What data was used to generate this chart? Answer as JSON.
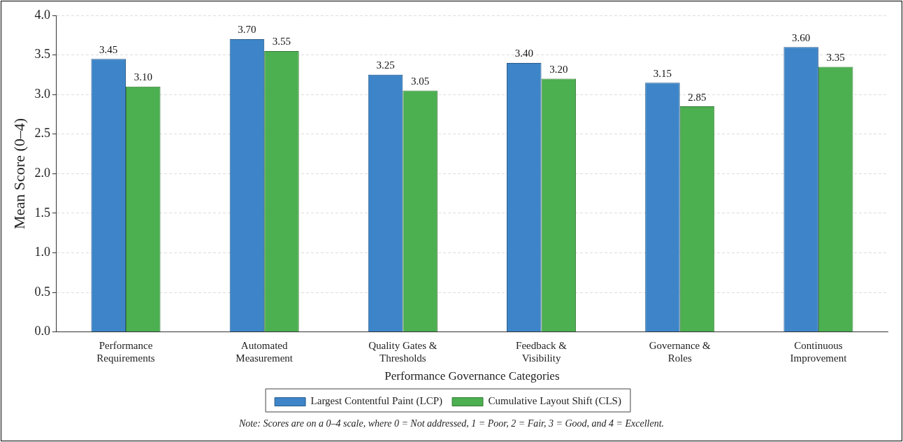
{
  "chart_data": {
    "type": "bar",
    "xlabel": "Performance Governance Categories",
    "ylabel": "Mean Score (0–4)",
    "categories": [
      "Performance Requirements",
      "Automated Measurement",
      "Quality Gates & Thresholds",
      "Feedback & Visibility",
      "Governance & Roles",
      "Continuous Improvement"
    ],
    "series": [
      {
        "name": "Largest Contentful Paint (LCP)",
        "color": "#3d85c8",
        "values": [
          3.45,
          3.7,
          3.25,
          3.4,
          3.15,
          3.6
        ],
        "value_labels": [
          "3.45",
          "3.70",
          "3.25",
          "3.40",
          "3.15",
          "3.60"
        ]
      },
      {
        "name": "Cumulative Layout Shift (CLS)",
        "color": "#4caf50",
        "values": [
          3.1,
          3.55,
          3.05,
          3.2,
          2.85,
          3.35
        ],
        "value_labels": [
          "3.10",
          "3.55",
          "3.05",
          "3.20",
          "2.85",
          "3.35"
        ]
      }
    ],
    "ylim": [
      0,
      4
    ],
    "yticks": [
      {
        "value": 0,
        "label": "0.0"
      },
      {
        "value": 0.5,
        "label": "0.5"
      },
      {
        "value": 1,
        "label": "1.0"
      },
      {
        "value": 1.5,
        "label": "1.5"
      },
      {
        "value": 2,
        "label": "2.0"
      },
      {
        "value": 2.5,
        "label": "2.5"
      },
      {
        "value": 3,
        "label": "3.0"
      },
      {
        "value": 3.5,
        "label": "3.5"
      },
      {
        "value": 4,
        "label": "4.0"
      }
    ],
    "grid": "y",
    "legend": "bottom",
    "annotations": [
      "Note: Scores are on a 0–4 scale, where 0 = Not addressed, 1 = Poor, 2 = Fair, 3 = Good, and 4 = Excellent."
    ]
  }
}
